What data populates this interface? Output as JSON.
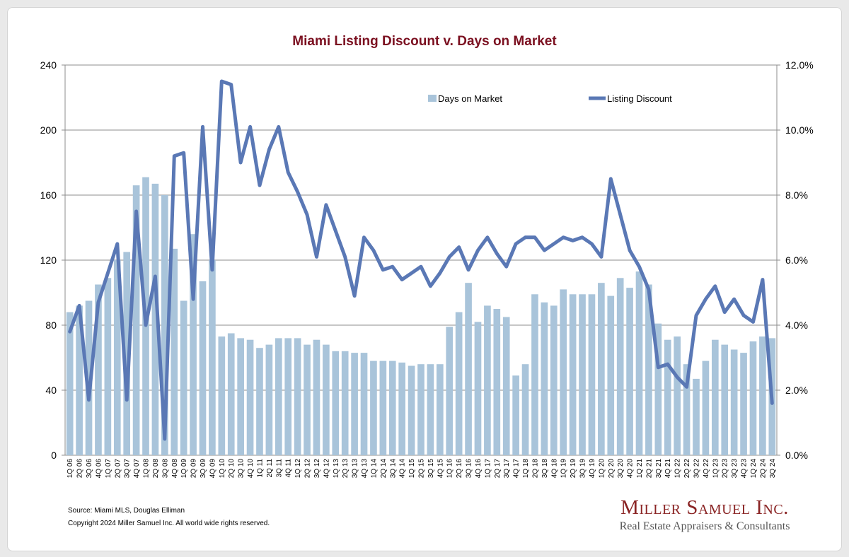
{
  "chart_data": {
    "type": "bar+line",
    "title": "Miami Listing Discount v. Days on Market",
    "legend": {
      "position": "top-right",
      "entries": [
        "Days on Market",
        "Listing Discount"
      ]
    },
    "y_left": {
      "min": 0,
      "max": 240,
      "ticks": [
        "0",
        "40",
        "80",
        "120",
        "160",
        "200",
        "240"
      ]
    },
    "y_right": {
      "min": 0,
      "max": 12,
      "ticks": [
        "0.0%",
        "2.0%",
        "4.0%",
        "6.0%",
        "8.0%",
        "10.0%",
        "12.0%"
      ]
    },
    "grid": "horizontal",
    "categories": [
      "1Q 06",
      "2Q 06",
      "3Q 06",
      "4Q 06",
      "1Q 07",
      "2Q 07",
      "3Q 07",
      "4Q 07",
      "1Q 08",
      "2Q 08",
      "3Q 08",
      "4Q 08",
      "1Q 09",
      "2Q 09",
      "3Q 09",
      "4Q 09",
      "1Q 10",
      "2Q 10",
      "3Q 10",
      "4Q 10",
      "1Q 11",
      "2Q 11",
      "3Q 11",
      "4Q 11",
      "1Q 12",
      "2Q 12",
      "3Q 12",
      "4Q 12",
      "1Q 13",
      "2Q 13",
      "3Q 13",
      "4Q 13",
      "1Q 14",
      "2Q 14",
      "3Q 14",
      "4Q 14",
      "1Q 15",
      "2Q 15",
      "3Q 15",
      "4Q 15",
      "1Q 16",
      "2Q 16",
      "3Q 16",
      "4Q 16",
      "1Q 17",
      "2Q 17",
      "3Q 17",
      "4Q 17",
      "1Q 18",
      "2Q 18",
      "3Q 18",
      "4Q 18",
      "1Q 19",
      "2Q 19",
      "3Q 19",
      "4Q 19",
      "1Q 20",
      "2Q 20",
      "3Q 20",
      "4Q 20",
      "1Q 21",
      "2Q 21",
      "3Q 21",
      "4Q 21",
      "1Q 22",
      "2Q 22",
      "3Q 22",
      "4Q 22",
      "1Q 23",
      "2Q 23",
      "3Q 23",
      "4Q 23",
      "1Q 24",
      "2Q 24",
      "3Q 24"
    ],
    "series": [
      {
        "name": "Days on Market",
        "kind": "bar",
        "axis": "left",
        "color": "#a9c4da",
        "values": [
          88,
          92,
          95,
          105,
          109,
          120,
          125,
          166,
          171,
          167,
          160,
          127,
          95,
          136,
          107,
          120,
          73,
          75,
          72,
          71,
          66,
          68,
          72,
          72,
          72,
          68,
          71,
          68,
          64,
          64,
          63,
          63,
          58,
          58,
          58,
          57,
          55,
          56,
          56,
          56,
          79,
          88,
          106,
          82,
          92,
          90,
          85,
          49,
          56,
          99,
          94,
          92,
          102,
          99,
          99,
          99,
          106,
          98,
          109,
          103,
          113,
          105,
          81,
          71,
          73,
          56,
          47,
          58,
          71,
          68,
          65,
          63,
          70,
          73,
          72
        ]
      },
      {
        "name": "Listing Discount",
        "kind": "line",
        "axis": "right",
        "color": "#5a78b5",
        "values": [
          3.8,
          4.6,
          1.7,
          4.7,
          5.6,
          6.5,
          1.7,
          7.5,
          4.0,
          5.5,
          0.5,
          9.2,
          9.3,
          4.8,
          10.1,
          5.7,
          11.5,
          11.4,
          9.0,
          10.1,
          8.3,
          9.4,
          10.1,
          8.7,
          8.1,
          7.4,
          6.1,
          7.7,
          6.9,
          6.1,
          4.9,
          6.7,
          6.3,
          5.7,
          5.8,
          5.4,
          5.6,
          5.8,
          5.2,
          5.6,
          6.1,
          6.4,
          5.7,
          6.3,
          6.7,
          6.2,
          5.8,
          6.5,
          6.7,
          6.7,
          6.3,
          6.5,
          6.7,
          6.6,
          6.7,
          6.5,
          6.1,
          8.5,
          7.4,
          6.3,
          5.8,
          5.1,
          2.7,
          2.8,
          2.4,
          2.1,
          4.3,
          4.8,
          5.2,
          4.4,
          4.8,
          4.3,
          4.1,
          5.4,
          1.6
        ]
      }
    ]
  },
  "footer": {
    "source": "Source: Miami MLS, Douglas Elliman",
    "copyright": "Copyright 2024 Miller Samuel Inc.  All world wide rights reserved."
  },
  "brand": {
    "name": "Miller Samuel Inc.",
    "tagline": "Real Estate Appraisers & Consultants"
  }
}
